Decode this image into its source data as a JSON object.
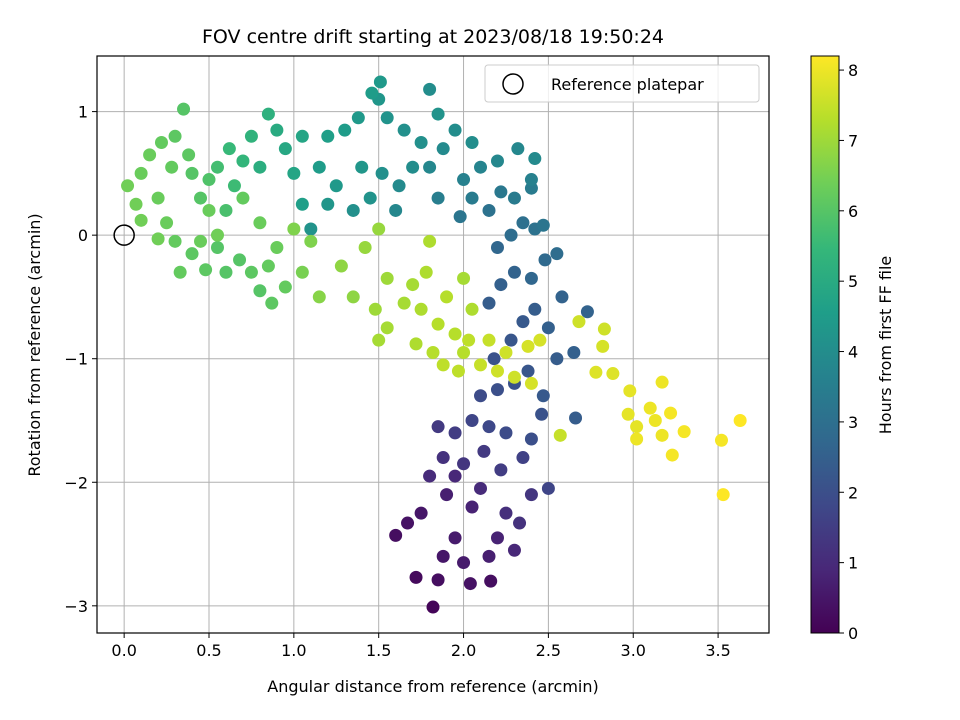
{
  "chart_data": {
    "type": "scatter",
    "title": "FOV centre drift starting at 2023/08/18 19:50:24",
    "xlabel": "Angular distance from reference (arcmin)",
    "ylabel": "Rotation from reference (arcmin)",
    "xlim": [
      -0.16,
      3.8
    ],
    "ylim": [
      -3.22,
      1.45
    ],
    "xticks": [
      0.0,
      0.5,
      1.0,
      1.5,
      2.0,
      2.5,
      3.0,
      3.5
    ],
    "xtick_labels": [
      "0.0",
      "0.5",
      "1.0",
      "1.5",
      "2.0",
      "2.5",
      "3.0",
      "3.5"
    ],
    "yticks": [
      1,
      0,
      -1,
      -2,
      -3
    ],
    "ytick_labels": [
      "1",
      "0",
      "−1",
      "−2",
      "−3"
    ],
    "grid": true,
    "legend": {
      "placement": "top-right",
      "entries": [
        "Reference platepar"
      ]
    },
    "reference_point": {
      "x": 0.0,
      "y": 0.0
    },
    "colorbar": {
      "label": "Hours from first FF file",
      "range": [
        0,
        8.2
      ],
      "ticks": [
        0,
        1,
        2,
        3,
        4,
        5,
        6,
        7,
        8
      ],
      "tick_labels": [
        "0",
        "1",
        "2",
        "3",
        "4",
        "5",
        "6",
        "7",
        "8"
      ],
      "colormap": [
        "#440154",
        "#482878",
        "#3e4989",
        "#31688e",
        "#26828e",
        "#1f9e89",
        "#35b779",
        "#6ece58",
        "#b5de2b",
        "#fde725"
      ]
    },
    "points": [
      {
        "x": 1.82,
        "y": -3.01,
        "t": 0.1
      },
      {
        "x": 1.72,
        "y": -2.77,
        "t": 0.2
      },
      {
        "x": 1.85,
        "y": -2.79,
        "t": 0.3
      },
      {
        "x": 2.16,
        "y": -2.8,
        "t": 0.3
      },
      {
        "x": 2.04,
        "y": -2.82,
        "t": 0.4
      },
      {
        "x": 1.6,
        "y": -2.43,
        "t": 0.3
      },
      {
        "x": 1.67,
        "y": -2.33,
        "t": 0.4
      },
      {
        "x": 1.75,
        "y": -2.25,
        "t": 0.5
      },
      {
        "x": 1.88,
        "y": -2.6,
        "t": 0.5
      },
      {
        "x": 1.95,
        "y": -2.45,
        "t": 0.6
      },
      {
        "x": 2.0,
        "y": -2.65,
        "t": 0.6
      },
      {
        "x": 2.15,
        "y": -2.6,
        "t": 0.7
      },
      {
        "x": 2.2,
        "y": -2.45,
        "t": 0.8
      },
      {
        "x": 2.3,
        "y": -2.55,
        "t": 0.9
      },
      {
        "x": 1.9,
        "y": -2.1,
        "t": 0.7
      },
      {
        "x": 1.95,
        "y": -1.95,
        "t": 0.9
      },
      {
        "x": 2.05,
        "y": -2.2,
        "t": 0.8
      },
      {
        "x": 2.1,
        "y": -2.05,
        "t": 1.0
      },
      {
        "x": 2.25,
        "y": -2.25,
        "t": 1.1
      },
      {
        "x": 2.33,
        "y": -2.33,
        "t": 1.2
      },
      {
        "x": 2.4,
        "y": -2.1,
        "t": 1.3
      },
      {
        "x": 1.8,
        "y": -1.95,
        "t": 1.0
      },
      {
        "x": 1.88,
        "y": -1.8,
        "t": 1.2
      },
      {
        "x": 2.0,
        "y": -1.85,
        "t": 1.3
      },
      {
        "x": 2.12,
        "y": -1.75,
        "t": 1.4
      },
      {
        "x": 2.22,
        "y": -1.9,
        "t": 1.5
      },
      {
        "x": 2.35,
        "y": -1.8,
        "t": 1.6
      },
      {
        "x": 2.5,
        "y": -2.05,
        "t": 1.7
      },
      {
        "x": 1.85,
        "y": -1.55,
        "t": 1.4
      },
      {
        "x": 1.95,
        "y": -1.6,
        "t": 1.5
      },
      {
        "x": 2.05,
        "y": -1.5,
        "t": 1.7
      },
      {
        "x": 2.15,
        "y": -1.55,
        "t": 1.8
      },
      {
        "x": 2.25,
        "y": -1.6,
        "t": 1.9
      },
      {
        "x": 2.4,
        "y": -1.65,
        "t": 2.0
      },
      {
        "x": 2.46,
        "y": -1.45,
        "t": 2.1
      },
      {
        "x": 2.1,
        "y": -1.3,
        "t": 1.9
      },
      {
        "x": 2.2,
        "y": -1.25,
        "t": 2.0
      },
      {
        "x": 2.3,
        "y": -1.2,
        "t": 2.1
      },
      {
        "x": 2.38,
        "y": -1.1,
        "t": 2.2
      },
      {
        "x": 2.47,
        "y": -1.3,
        "t": 2.3
      },
      {
        "x": 2.55,
        "y": -1.0,
        "t": 2.4
      },
      {
        "x": 2.65,
        "y": -0.95,
        "t": 2.5
      },
      {
        "x": 2.66,
        "y": -1.48,
        "t": 2.4
      },
      {
        "x": 2.18,
        "y": -1.0,
        "t": 2.1
      },
      {
        "x": 2.28,
        "y": -0.85,
        "t": 2.2
      },
      {
        "x": 2.35,
        "y": -0.7,
        "t": 2.3
      },
      {
        "x": 2.42,
        "y": -0.6,
        "t": 2.4
      },
      {
        "x": 2.5,
        "y": -0.75,
        "t": 2.5
      },
      {
        "x": 2.58,
        "y": -0.5,
        "t": 2.6
      },
      {
        "x": 2.73,
        "y": -0.62,
        "t": 2.6
      },
      {
        "x": 2.15,
        "y": -0.55,
        "t": 2.4
      },
      {
        "x": 2.22,
        "y": -0.4,
        "t": 2.5
      },
      {
        "x": 2.3,
        "y": -0.3,
        "t": 2.6
      },
      {
        "x": 2.4,
        "y": -0.35,
        "t": 2.7
      },
      {
        "x": 2.48,
        "y": -0.2,
        "t": 2.8
      },
      {
        "x": 2.55,
        "y": -0.15,
        "t": 2.9
      },
      {
        "x": 2.2,
        "y": -0.1,
        "t": 2.7
      },
      {
        "x": 2.28,
        "y": 0.0,
        "t": 2.9
      },
      {
        "x": 2.35,
        "y": 0.1,
        "t": 3.0
      },
      {
        "x": 2.42,
        "y": 0.05,
        "t": 3.1
      },
      {
        "x": 2.47,
        "y": 0.08,
        "t": 3.2
      },
      {
        "x": 2.15,
        "y": 0.2,
        "t": 3.1
      },
      {
        "x": 2.22,
        "y": 0.35,
        "t": 3.3
      },
      {
        "x": 2.3,
        "y": 0.3,
        "t": 3.4
      },
      {
        "x": 2.4,
        "y": 0.38,
        "t": 3.4
      },
      {
        "x": 1.98,
        "y": 0.15,
        "t": 3.2
      },
      {
        "x": 2.05,
        "y": 0.3,
        "t": 3.4
      },
      {
        "x": 2.0,
        "y": 0.45,
        "t": 3.6
      },
      {
        "x": 2.1,
        "y": 0.55,
        "t": 3.7
      },
      {
        "x": 2.2,
        "y": 0.6,
        "t": 3.8
      },
      {
        "x": 2.32,
        "y": 0.7,
        "t": 3.8
      },
      {
        "x": 2.42,
        "y": 0.62,
        "t": 3.9
      },
      {
        "x": 2.4,
        "y": 0.45,
        "t": 3.6
      },
      {
        "x": 1.85,
        "y": 0.3,
        "t": 3.5
      },
      {
        "x": 1.8,
        "y": 0.55,
        "t": 3.8
      },
      {
        "x": 1.88,
        "y": 0.7,
        "t": 3.9
      },
      {
        "x": 1.95,
        "y": 0.85,
        "t": 4.0
      },
      {
        "x": 2.05,
        "y": 0.75,
        "t": 4.0
      },
      {
        "x": 1.62,
        "y": 0.4,
        "t": 3.9
      },
      {
        "x": 1.7,
        "y": 0.55,
        "t": 4.0
      },
      {
        "x": 1.52,
        "y": 0.5,
        "t": 4.1
      },
      {
        "x": 1.6,
        "y": 0.2,
        "t": 3.8
      },
      {
        "x": 1.45,
        "y": 0.3,
        "t": 4.2
      },
      {
        "x": 1.4,
        "y": 0.55,
        "t": 4.3
      },
      {
        "x": 1.35,
        "y": 0.2,
        "t": 4.1
      },
      {
        "x": 1.25,
        "y": 0.4,
        "t": 4.4
      },
      {
        "x": 1.2,
        "y": 0.25,
        "t": 4.3
      },
      {
        "x": 1.15,
        "y": 0.55,
        "t": 4.5
      },
      {
        "x": 1.2,
        "y": 0.8,
        "t": 4.6
      },
      {
        "x": 1.3,
        "y": 0.85,
        "t": 4.5
      },
      {
        "x": 1.38,
        "y": 0.95,
        "t": 4.4
      },
      {
        "x": 1.5,
        "y": 1.1,
        "t": 4.3
      },
      {
        "x": 1.55,
        "y": 0.95,
        "t": 4.2
      },
      {
        "x": 1.51,
        "y": 1.24,
        "t": 4.4
      },
      {
        "x": 1.46,
        "y": 1.15,
        "t": 4.5
      },
      {
        "x": 1.65,
        "y": 0.85,
        "t": 4.1
      },
      {
        "x": 1.8,
        "y": 1.18,
        "t": 4.0
      },
      {
        "x": 1.85,
        "y": 0.98,
        "t": 4.2
      },
      {
        "x": 1.75,
        "y": 0.75,
        "t": 4.1
      },
      {
        "x": 1.1,
        "y": 0.05,
        "t": 4.2
      },
      {
        "x": 1.05,
        "y": 0.25,
        "t": 4.6
      },
      {
        "x": 1.0,
        "y": 0.5,
        "t": 4.8
      },
      {
        "x": 0.95,
        "y": 0.7,
        "t": 4.9
      },
      {
        "x": 1.05,
        "y": 0.8,
        "t": 4.8
      },
      {
        "x": 0.9,
        "y": 0.85,
        "t": 5.0
      },
      {
        "x": 0.85,
        "y": 0.98,
        "t": 5.2
      },
      {
        "x": 0.8,
        "y": 0.55,
        "t": 5.1
      },
      {
        "x": 0.75,
        "y": 0.8,
        "t": 5.3
      },
      {
        "x": 0.7,
        "y": 0.6,
        "t": 5.4
      },
      {
        "x": 0.65,
        "y": 0.4,
        "t": 5.6
      },
      {
        "x": 0.6,
        "y": 0.2,
        "t": 5.8
      },
      {
        "x": 0.62,
        "y": 0.7,
        "t": 5.5
      },
      {
        "x": 0.55,
        "y": 0.55,
        "t": 5.7
      },
      {
        "x": 0.5,
        "y": 0.45,
        "t": 5.9
      },
      {
        "x": 0.45,
        "y": 0.3,
        "t": 6.0
      },
      {
        "x": 0.4,
        "y": 0.5,
        "t": 6.0
      },
      {
        "x": 0.38,
        "y": 0.65,
        "t": 6.1
      },
      {
        "x": 0.35,
        "y": 1.02,
        "t": 6.0
      },
      {
        "x": 0.3,
        "y": 0.8,
        "t": 6.1
      },
      {
        "x": 0.22,
        "y": 0.75,
        "t": 6.2
      },
      {
        "x": 0.15,
        "y": 0.65,
        "t": 6.3
      },
      {
        "x": 0.1,
        "y": 0.5,
        "t": 6.3
      },
      {
        "x": 0.02,
        "y": 0.4,
        "t": 6.4
      },
      {
        "x": 0.07,
        "y": 0.25,
        "t": 6.4
      },
      {
        "x": 0.1,
        "y": 0.12,
        "t": 6.4
      },
      {
        "x": 0.2,
        "y": 0.3,
        "t": 6.3
      },
      {
        "x": 0.25,
        "y": 0.1,
        "t": 6.3
      },
      {
        "x": 0.3,
        "y": -0.05,
        "t": 6.2
      },
      {
        "x": 0.33,
        "y": -0.3,
        "t": 6.2
      },
      {
        "x": 0.4,
        "y": -0.15,
        "t": 6.1
      },
      {
        "x": 0.48,
        "y": -0.28,
        "t": 6.1
      },
      {
        "x": 0.55,
        "y": -0.1,
        "t": 6.0
      },
      {
        "x": 0.6,
        "y": -0.3,
        "t": 6.0
      },
      {
        "x": 0.68,
        "y": -0.2,
        "t": 6.0
      },
      {
        "x": 0.75,
        "y": -0.3,
        "t": 6.1
      },
      {
        "x": 0.8,
        "y": -0.45,
        "t": 6.0
      },
      {
        "x": 0.87,
        "y": -0.55,
        "t": 6.1
      },
      {
        "x": 0.95,
        "y": -0.42,
        "t": 6.2
      },
      {
        "x": 0.85,
        "y": -0.25,
        "t": 6.2
      },
      {
        "x": 0.9,
        "y": -0.1,
        "t": 6.3
      },
      {
        "x": 0.8,
        "y": 0.1,
        "t": 6.3
      },
      {
        "x": 0.7,
        "y": 0.3,
        "t": 6.2
      },
      {
        "x": 0.55,
        "y": 0.0,
        "t": 6.4
      },
      {
        "x": 0.45,
        "y": -0.05,
        "t": 6.3
      },
      {
        "x": 0.2,
        "y": -0.03,
        "t": 6.4
      },
      {
        "x": 0.5,
        "y": 0.2,
        "t": 6.3
      },
      {
        "x": 0.28,
        "y": 0.55,
        "t": 6.2
      },
      {
        "x": 1.05,
        "y": -0.3,
        "t": 6.5
      },
      {
        "x": 1.1,
        "y": -0.05,
        "t": 6.6
      },
      {
        "x": 1.0,
        "y": 0.05,
        "t": 6.6
      },
      {
        "x": 1.15,
        "y": -0.5,
        "t": 6.7
      },
      {
        "x": 1.28,
        "y": -0.25,
        "t": 6.8
      },
      {
        "x": 1.35,
        "y": -0.5,
        "t": 6.8
      },
      {
        "x": 1.42,
        "y": -0.1,
        "t": 6.9
      },
      {
        "x": 1.5,
        "y": 0.05,
        "t": 6.9
      },
      {
        "x": 1.55,
        "y": -0.35,
        "t": 7.0
      },
      {
        "x": 1.48,
        "y": -0.6,
        "t": 7.0
      },
      {
        "x": 1.55,
        "y": -0.75,
        "t": 7.1
      },
      {
        "x": 1.5,
        "y": -0.85,
        "t": 7.1
      },
      {
        "x": 1.65,
        "y": -0.55,
        "t": 7.1
      },
      {
        "x": 1.7,
        "y": -0.4,
        "t": 7.1
      },
      {
        "x": 1.75,
        "y": -0.6,
        "t": 7.2
      },
      {
        "x": 1.78,
        "y": -0.3,
        "t": 7.2
      },
      {
        "x": 1.8,
        "y": -0.05,
        "t": 7.2
      },
      {
        "x": 1.72,
        "y": -0.88,
        "t": 7.2
      },
      {
        "x": 1.85,
        "y": -0.72,
        "t": 7.3
      },
      {
        "x": 1.9,
        "y": -0.5,
        "t": 7.3
      },
      {
        "x": 1.82,
        "y": -0.95,
        "t": 7.3
      },
      {
        "x": 1.95,
        "y": -0.8,
        "t": 7.3
      },
      {
        "x": 2.0,
        "y": -0.95,
        "t": 7.3
      },
      {
        "x": 1.88,
        "y": -1.05,
        "t": 7.4
      },
      {
        "x": 1.97,
        "y": -1.1,
        "t": 7.4
      },
      {
        "x": 2.05,
        "y": -0.6,
        "t": 7.2
      },
      {
        "x": 2.0,
        "y": -0.35,
        "t": 7.1
      },
      {
        "x": 2.03,
        "y": -0.85,
        "t": 7.4
      },
      {
        "x": 2.1,
        "y": -1.05,
        "t": 7.5
      },
      {
        "x": 2.15,
        "y": -0.85,
        "t": 7.5
      },
      {
        "x": 2.2,
        "y": -1.1,
        "t": 7.6
      },
      {
        "x": 2.25,
        "y": -0.95,
        "t": 7.6
      },
      {
        "x": 2.3,
        "y": -1.15,
        "t": 7.6
      },
      {
        "x": 2.38,
        "y": -0.9,
        "t": 7.7
      },
      {
        "x": 2.45,
        "y": -0.85,
        "t": 7.7
      },
      {
        "x": 2.4,
        "y": -1.2,
        "t": 7.7
      },
      {
        "x": 2.57,
        "y": -1.62,
        "t": 7.5
      },
      {
        "x": 2.68,
        "y": -0.7,
        "t": 7.6
      },
      {
        "x": 2.82,
        "y": -0.9,
        "t": 7.7
      },
      {
        "x": 2.83,
        "y": -0.76,
        "t": 7.6
      },
      {
        "x": 2.78,
        "y": -1.11,
        "t": 7.8
      },
      {
        "x": 2.88,
        "y": -1.12,
        "t": 7.8
      },
      {
        "x": 2.98,
        "y": -1.26,
        "t": 7.9
      },
      {
        "x": 2.97,
        "y": -1.45,
        "t": 7.9
      },
      {
        "x": 3.02,
        "y": -1.55,
        "t": 7.9
      },
      {
        "x": 3.02,
        "y": -1.65,
        "t": 8.0
      },
      {
        "x": 3.1,
        "y": -1.4,
        "t": 8.0
      },
      {
        "x": 3.13,
        "y": -1.5,
        "t": 8.0
      },
      {
        "x": 3.17,
        "y": -1.62,
        "t": 8.0
      },
      {
        "x": 3.17,
        "y": -1.19,
        "t": 8.0
      },
      {
        "x": 3.22,
        "y": -1.44,
        "t": 8.1
      },
      {
        "x": 3.23,
        "y": -1.78,
        "t": 8.1
      },
      {
        "x": 3.3,
        "y": -1.59,
        "t": 8.1
      },
      {
        "x": 3.52,
        "y": -1.66,
        "t": 8.1
      },
      {
        "x": 3.53,
        "y": -2.1,
        "t": 8.2
      },
      {
        "x": 3.63,
        "y": -1.5,
        "t": 8.2
      }
    ]
  }
}
